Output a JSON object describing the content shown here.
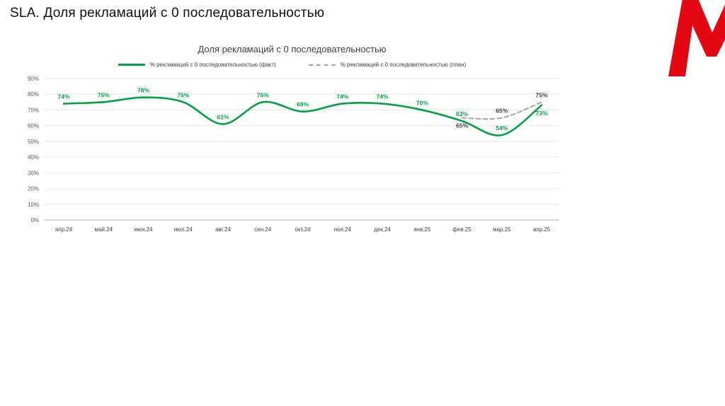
{
  "slide": {
    "title": "SLA. Доля рекламаций с 0 последовательностью"
  },
  "logo": {
    "icon": "magnit-m-logo",
    "color": "#e30613"
  },
  "chart_data": {
    "type": "line",
    "title": "Доля рекламаций с 0 последовательностью",
    "categories": [
      "апр.24",
      "май.24",
      "июн.24",
      "июл.24",
      "авг.24",
      "сен.24",
      "окт.24",
      "ноя.24",
      "дек.24",
      "янв.25",
      "фев.25",
      "мар.25",
      "апр.25"
    ],
    "series": [
      {
        "name": "% рекламаций с 0 последовательностью (факт)",
        "color": "#00a341",
        "label_color": "#00a341",
        "style": "solid",
        "values": [
          74,
          75,
          78,
          75,
          61,
          75,
          69,
          74,
          74,
          70,
          63,
          54,
          73
        ],
        "label_placement": [
          "above",
          "above",
          "above",
          "above",
          "above",
          "above",
          "above",
          "above",
          "above",
          "above",
          "above",
          "above",
          "below"
        ]
      },
      {
        "name": "% рекламаций с 0 последовательностью (план)",
        "color": "#a6a6a6",
        "label_color": "#404040",
        "style": "dashed",
        "values": [
          null,
          null,
          null,
          null,
          null,
          null,
          null,
          null,
          null,
          null,
          65,
          65,
          75
        ],
        "label_placement": [
          null,
          null,
          null,
          null,
          null,
          null,
          null,
          null,
          null,
          null,
          "below",
          "above",
          "above"
        ]
      }
    ],
    "ylim": [
      0,
      90
    ],
    "ytick_step": 10,
    "ytick_suffix": "%",
    "grid": true,
    "legend_position": "top"
  }
}
